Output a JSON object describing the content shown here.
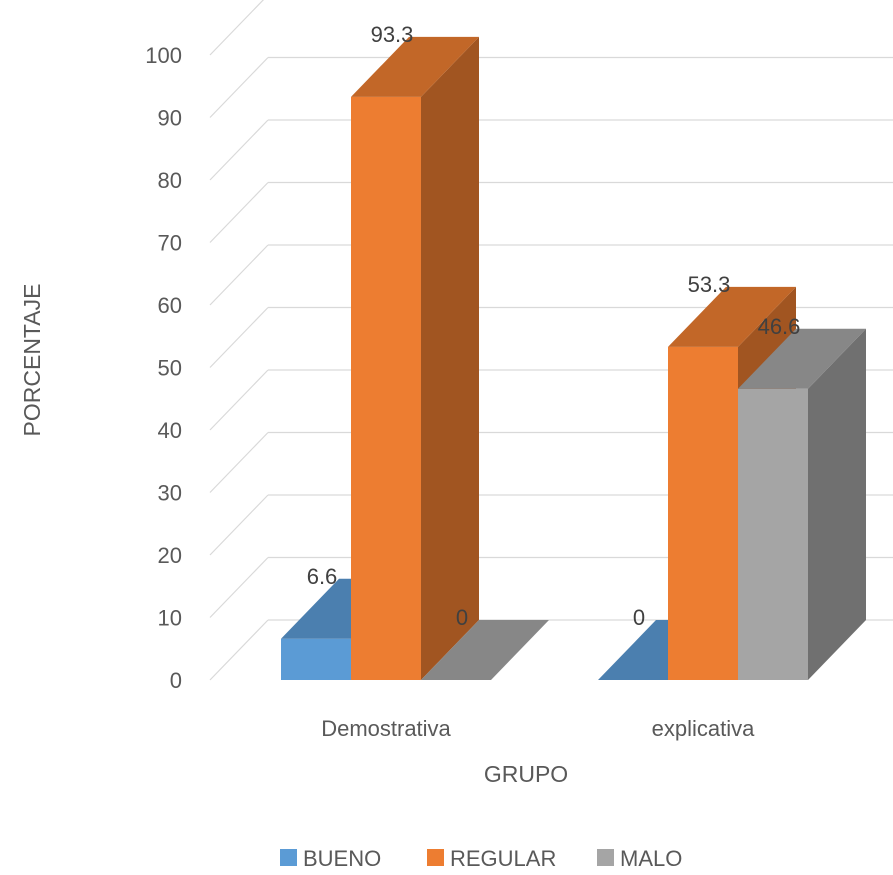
{
  "chart_data": {
    "type": "bar",
    "style": "3d-clustered-column",
    "categories": [
      "Demostrativa",
      "explicativa"
    ],
    "series": [
      {
        "name": "BUENO",
        "values": [
          6.6,
          0
        ],
        "color": "#5B9BD5"
      },
      {
        "name": "REGULAR",
        "values": [
          93.3,
          53.3
        ],
        "color": "#ED7D31"
      },
      {
        "name": "MALO",
        "values": [
          0,
          46.6
        ],
        "color": "#A5A5A5"
      }
    ],
    "data_labels": [
      [
        "6.6",
        "0"
      ],
      [
        "93.3",
        "53.3"
      ],
      [
        "0",
        "46.6"
      ]
    ],
    "xlabel": "GRUPO",
    "ylabel": "PORCENTAJE",
    "ylim": [
      0,
      100
    ],
    "yticks": [
      "0",
      "10",
      "20",
      "30",
      "40",
      "50",
      "60",
      "70",
      "80",
      "90",
      "100"
    ],
    "grid": true,
    "legend_position": "bottom"
  }
}
